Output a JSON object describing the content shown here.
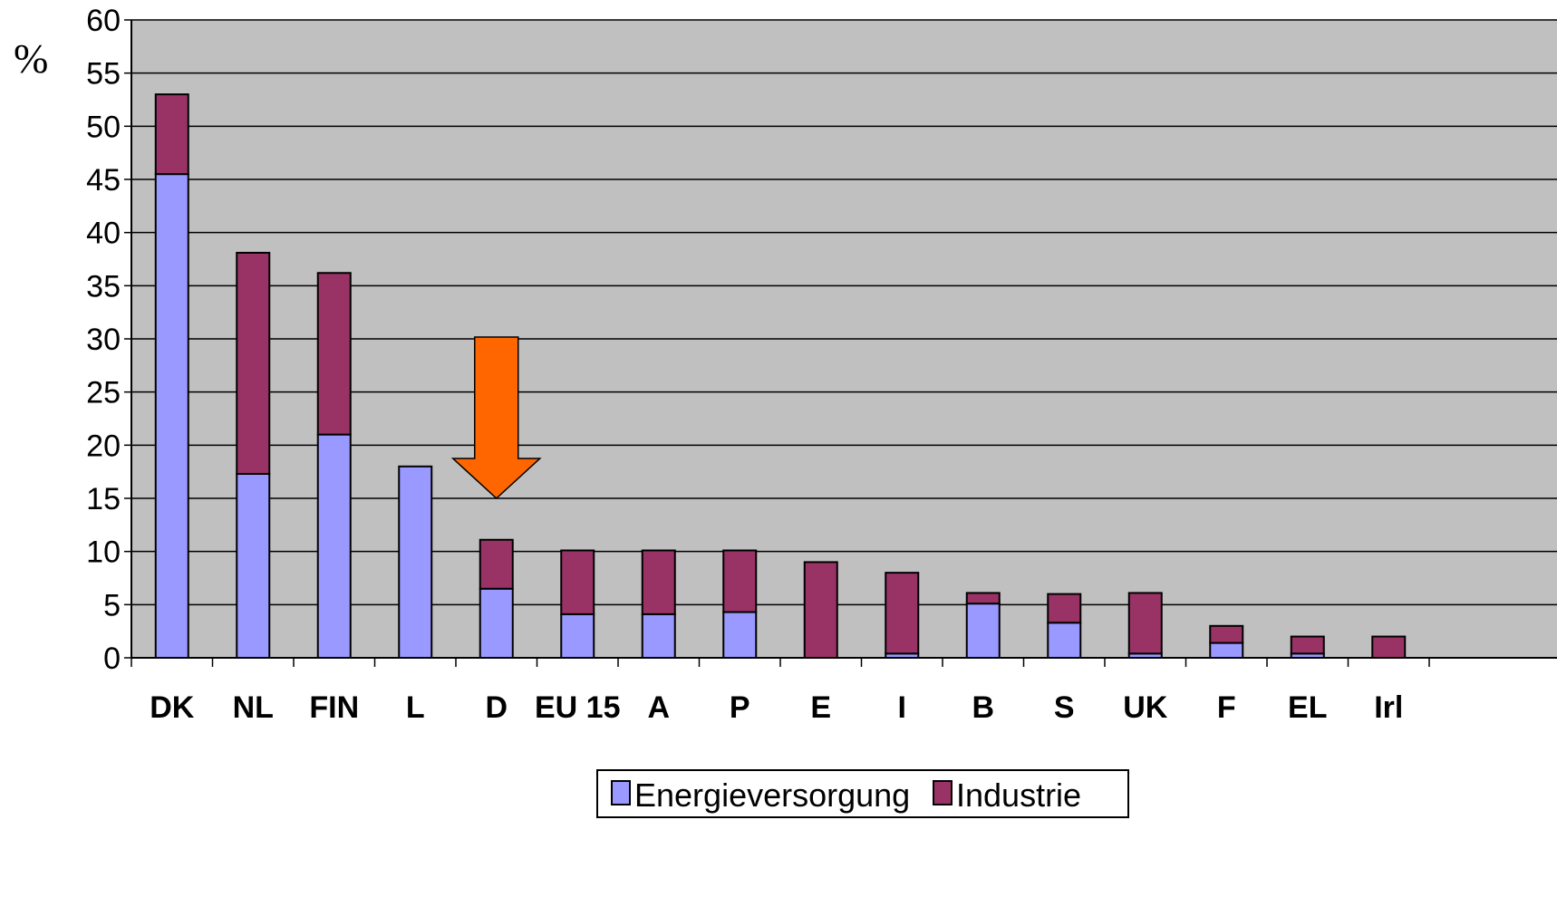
{
  "chart_data": {
    "type": "bar",
    "stacked": true,
    "ylabel": "%",
    "ylim": [
      0,
      60
    ],
    "yticks": [
      0,
      5,
      10,
      15,
      20,
      25,
      30,
      35,
      40,
      45,
      50,
      55,
      60
    ],
    "grid": true,
    "legend_position": "bottom",
    "categories": [
      "DK",
      "NL",
      "FIN",
      "L",
      "D",
      "EU 15",
      "A",
      "P",
      "E",
      "I",
      "B",
      "S",
      "UK",
      "F",
      "EL",
      "Irl"
    ],
    "series": [
      {
        "name": "Energieversorgung",
        "color": "#9999ff",
        "values": [
          45.5,
          17.3,
          21.0,
          18.0,
          6.5,
          4.1,
          4.1,
          4.3,
          0.0,
          0.4,
          5.1,
          3.3,
          0.4,
          1.4,
          0.4,
          0.0
        ]
      },
      {
        "name": "Industrie",
        "color": "#993366",
        "values": [
          7.5,
          20.8,
          15.2,
          0.0,
          4.6,
          6.0,
          6.0,
          5.8,
          9.0,
          7.6,
          1.0,
          2.7,
          5.7,
          1.6,
          1.6,
          2.0
        ]
      }
    ],
    "annotations": [
      {
        "type": "arrow",
        "direction": "down",
        "color": "#ff6600",
        "target_category": "D"
      }
    ],
    "plot_background": "#c0c0c0"
  }
}
